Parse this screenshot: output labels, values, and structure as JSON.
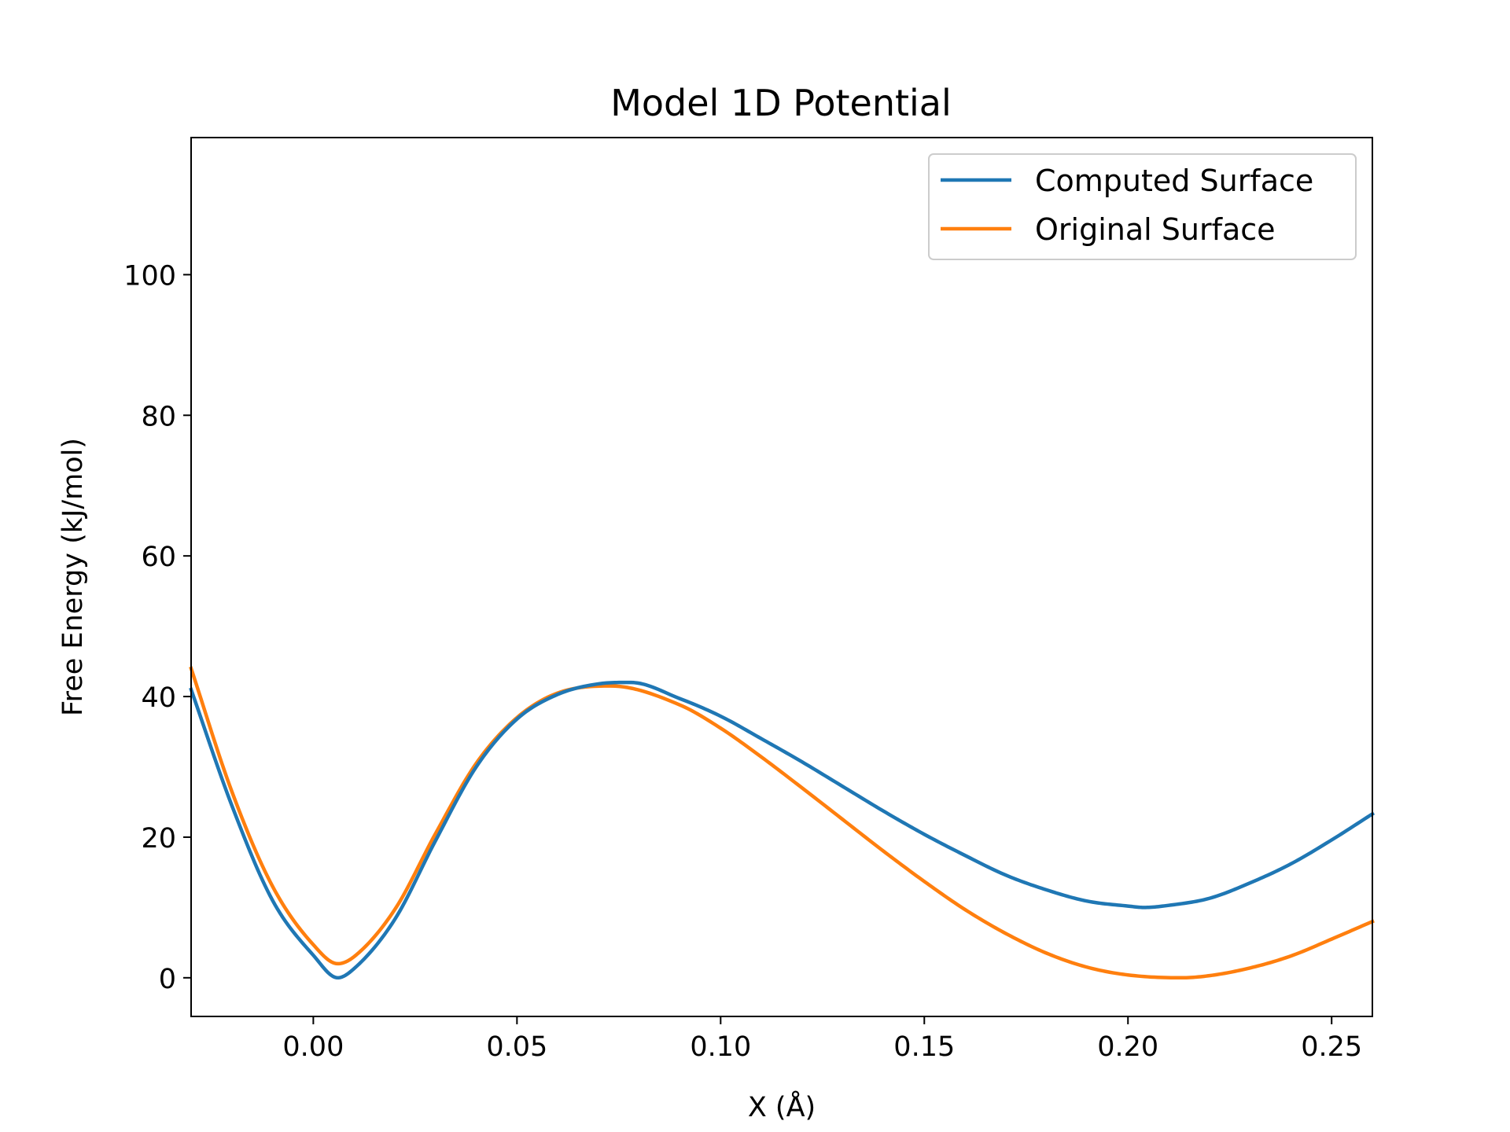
{
  "chart_data": {
    "type": "line",
    "title": "Model 1D Potential",
    "xlabel": "X (Å)",
    "ylabel": "Free Energy (kJ/mol)",
    "xlim": [
      -0.03,
      0.26
    ],
    "ylim": [
      -5.5,
      119.5
    ],
    "xticks": [
      0.0,
      0.05,
      0.1,
      0.15,
      0.2,
      0.25
    ],
    "xtick_labels": [
      "0.00",
      "0.05",
      "0.10",
      "0.15",
      "0.20",
      "0.25"
    ],
    "yticks": [
      0,
      20,
      40,
      60,
      80,
      100
    ],
    "ytick_labels": [
      "0",
      "20",
      "40",
      "60",
      "80",
      "100"
    ],
    "grid": false,
    "legend_position": "top-right",
    "series": [
      {
        "name": "Computed Surface",
        "color": "#1f77b4",
        "x": [
          -0.03,
          -0.02,
          -0.01,
          0.0,
          0.006,
          0.01,
          0.02,
          0.03,
          0.04,
          0.05,
          0.06,
          0.07,
          0.078,
          0.09,
          0.1,
          0.11,
          0.12,
          0.13,
          0.14,
          0.15,
          0.16,
          0.17,
          0.18,
          0.19,
          0.2,
          0.204,
          0.21,
          0.22,
          0.23,
          0.24,
          0.25,
          0.26
        ],
        "y": [
          41.0,
          24.5,
          11.0,
          3.2,
          0.0,
          1.3,
          8.3,
          19.5,
          30.0,
          36.8,
          40.3,
          41.8,
          42.0,
          39.7,
          37.2,
          34.0,
          30.7,
          27.2,
          23.7,
          20.4,
          17.4,
          14.6,
          12.5,
          10.9,
          10.2,
          10.0,
          10.3,
          11.3,
          13.5,
          16.2,
          19.6,
          23.3
        ]
      },
      {
        "name": "Original Surface",
        "color": "#ff7f0e",
        "x": [
          -0.03,
          -0.02,
          -0.01,
          0.0,
          0.006,
          0.01,
          0.02,
          0.03,
          0.04,
          0.05,
          0.06,
          0.073,
          0.09,
          0.1,
          0.11,
          0.12,
          0.13,
          0.14,
          0.15,
          0.16,
          0.17,
          0.18,
          0.19,
          0.2,
          0.213,
          0.22,
          0.23,
          0.24,
          0.25,
          0.26
        ],
        "y": [
          44.0,
          26.5,
          13.0,
          4.7,
          2.0,
          3.0,
          9.7,
          20.5,
          30.5,
          37.0,
          40.5,
          41.5,
          38.8,
          35.5,
          31.4,
          27.0,
          22.5,
          18.0,
          13.7,
          9.7,
          6.3,
          3.5,
          1.5,
          0.4,
          0.0,
          0.3,
          1.4,
          3.1,
          5.5,
          8.0
        ]
      }
    ]
  }
}
